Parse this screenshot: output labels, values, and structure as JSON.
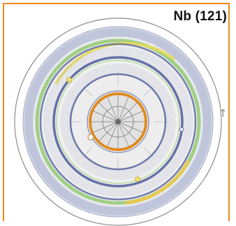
{
  "figure": {
    "label": "Nb (121)",
    "direction_glyph": "↑",
    "colors": {
      "frame": "#f08a1c",
      "outer_circle": "#8c8c8c",
      "band_blue": "#4c5a98",
      "band_green": "#8ec86a",
      "band_yellow": "#e8da5a",
      "pole_ring": "#e08a20",
      "center": "#6a6a6a"
    }
  }
}
